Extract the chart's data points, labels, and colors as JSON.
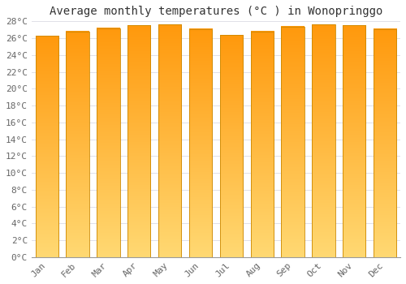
{
  "title": "Average monthly temperatures (°C ) in Wonopringgo",
  "months": [
    "Jan",
    "Feb",
    "Mar",
    "Apr",
    "May",
    "Jun",
    "Jul",
    "Aug",
    "Sep",
    "Oct",
    "Nov",
    "Dec"
  ],
  "temperatures": [
    26.3,
    26.8,
    27.2,
    27.5,
    27.6,
    27.1,
    26.4,
    26.8,
    27.4,
    27.6,
    27.5,
    27.1
  ],
  "ylim": [
    0,
    28
  ],
  "yticks": [
    0,
    2,
    4,
    6,
    8,
    10,
    12,
    14,
    16,
    18,
    20,
    22,
    24,
    26,
    28
  ],
  "bar_color_top": "#FFA500",
  "bar_color_bottom": "#FFD580",
  "bar_edge_color": "#CC8800",
  "background_color": "#FFFFFF",
  "grid_color": "#E0E0E8",
  "title_fontsize": 10,
  "tick_fontsize": 8,
  "title_color": "#333333",
  "tick_color": "#666666",
  "bar_width": 0.75
}
